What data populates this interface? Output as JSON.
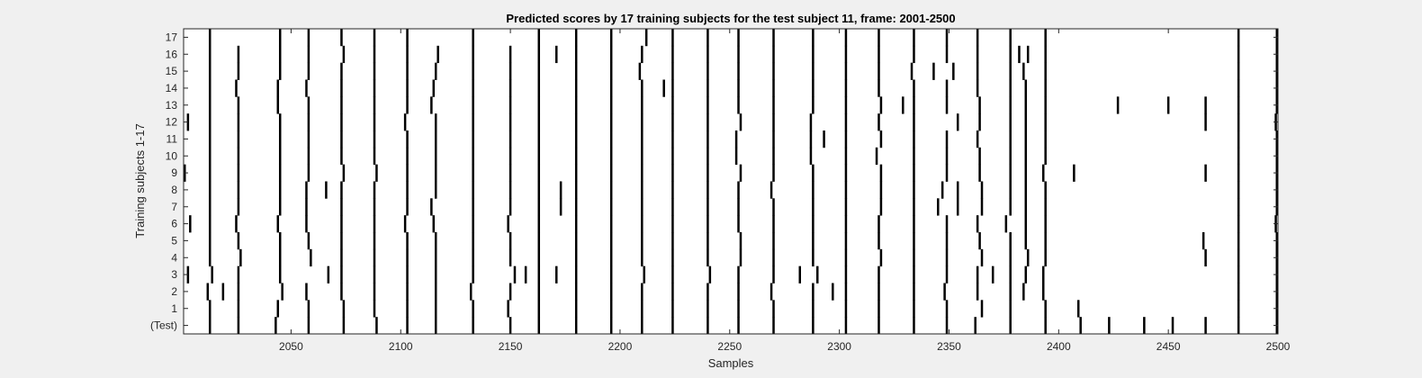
{
  "chart_data": {
    "type": "heatmap",
    "title": "Predicted scores by 17 training subjects for the test subject 11, frame: 2001-2500",
    "xlabel": "Samples",
    "ylabel": "Training subjects 1-17",
    "xlim": [
      2001,
      2500
    ],
    "x_ticks": [
      2050,
      2100,
      2150,
      2200,
      2250,
      2300,
      2350,
      2400,
      2450,
      2500
    ],
    "y_tick_labels": [
      "(Test)",
      "1",
      "2",
      "3",
      "4",
      "5",
      "6",
      "7",
      "8",
      "9",
      "10",
      "11",
      "12",
      "13",
      "14",
      "15",
      "16",
      "17"
    ],
    "grid": false,
    "colors": {
      "background": "#ffffff",
      "mark": "#000000",
      "figure": "#f0f0f0"
    },
    "rows": [
      {
        "label": "(Test)",
        "events": [
          2013,
          2026,
          2043,
          2058,
          2074,
          2089,
          2103,
          2116,
          2133,
          2150,
          2163,
          2180,
          2196,
          2210,
          2224,
          2240,
          2254,
          2270,
          2288,
          2303,
          2318,
          2334,
          2349,
          2362,
          2378,
          2394,
          2410,
          2423,
          2439,
          2452,
          2467,
          2482,
          2500
        ]
      },
      {
        "label": "1",
        "events": [
          2013,
          2026,
          2044,
          2058,
          2074,
          2088,
          2103,
          2116,
          2133,
          2149,
          2163,
          2180,
          2196,
          2210,
          2224,
          2240,
          2254,
          2270,
          2288,
          2303,
          2318,
          2334,
          2349,
          2365,
          2378,
          2394,
          2409,
          2482,
          2500
        ]
      },
      {
        "label": "2",
        "events": [
          2012,
          2019,
          2026,
          2046,
          2057,
          2073,
          2088,
          2103,
          2116,
          2132,
          2150,
          2163,
          2180,
          2196,
          2210,
          2224,
          2240,
          2254,
          2269,
          2288,
          2297,
          2303,
          2318,
          2334,
          2348,
          2363,
          2378,
          2384,
          2393,
          2482,
          2500
        ]
      },
      {
        "label": "3",
        "events": [
          2003,
          2014,
          2026,
          2045,
          2067,
          2073,
          2088,
          2103,
          2116,
          2133,
          2152,
          2157,
          2163,
          2171,
          2180,
          2196,
          2211,
          2224,
          2241,
          2254,
          2270,
          2282,
          2290,
          2303,
          2318,
          2334,
          2349,
          2363,
          2370,
          2378,
          2385,
          2393,
          2482,
          2500
        ]
      },
      {
        "label": "4",
        "events": [
          2013,
          2027,
          2045,
          2059,
          2073,
          2088,
          2103,
          2116,
          2133,
          2150,
          2163,
          2180,
          2196,
          2210,
          2224,
          2240,
          2255,
          2270,
          2288,
          2303,
          2319,
          2334,
          2349,
          2365,
          2378,
          2386,
          2394,
          2467,
          2482,
          2500
        ]
      },
      {
        "label": "5",
        "events": [
          2013,
          2026,
          2045,
          2058,
          2073,
          2088,
          2103,
          2116,
          2133,
          2150,
          2163,
          2180,
          2196,
          2210,
          2224,
          2240,
          2255,
          2270,
          2288,
          2303,
          2318,
          2334,
          2349,
          2364,
          2378,
          2385,
          2394,
          2466,
          2482,
          2500
        ]
      },
      {
        "label": "6",
        "events": [
          2004,
          2013,
          2025,
          2044,
          2057,
          2073,
          2088,
          2102,
          2115,
          2133,
          2149,
          2163,
          2180,
          2196,
          2210,
          2224,
          2240,
          2254,
          2270,
          2288,
          2303,
          2318,
          2334,
          2349,
          2363,
          2376,
          2385,
          2394,
          2482,
          2499
        ]
      },
      {
        "label": "7",
        "events": [
          2013,
          2026,
          2045,
          2057,
          2073,
          2088,
          2103,
          2114,
          2133,
          2150,
          2163,
          2173,
          2180,
          2196,
          2210,
          2224,
          2240,
          2254,
          2270,
          2288,
          2303,
          2319,
          2334,
          2345,
          2354,
          2365,
          2378,
          2385,
          2394,
          2482,
          2500
        ]
      },
      {
        "label": "8",
        "events": [
          2013,
          2026,
          2045,
          2057,
          2066,
          2073,
          2088,
          2103,
          2116,
          2133,
          2150,
          2163,
          2173,
          2180,
          2196,
          2210,
          2224,
          2240,
          2254,
          2269,
          2288,
          2303,
          2319,
          2334,
          2347,
          2354,
          2365,
          2378,
          2385,
          2394,
          2482,
          2500
        ]
      },
      {
        "label": "9",
        "events": [
          2001,
          2013,
          2026,
          2045,
          2058,
          2074,
          2089,
          2103,
          2116,
          2133,
          2150,
          2163,
          2180,
          2196,
          2210,
          2224,
          2240,
          2255,
          2270,
          2288,
          2303,
          2319,
          2334,
          2349,
          2364,
          2378,
          2385,
          2393,
          2407,
          2467,
          2482,
          2500
        ]
      },
      {
        "label": "10",
        "events": [
          2013,
          2026,
          2045,
          2058,
          2073,
          2088,
          2103,
          2116,
          2133,
          2150,
          2163,
          2180,
          2196,
          2210,
          2224,
          2240,
          2253,
          2270,
          2287,
          2303,
          2317,
          2334,
          2349,
          2364,
          2378,
          2385,
          2394,
          2482,
          2500
        ]
      },
      {
        "label": "11",
        "events": [
          2013,
          2026,
          2045,
          2058,
          2073,
          2088,
          2103,
          2116,
          2133,
          2150,
          2163,
          2180,
          2196,
          2210,
          2224,
          2240,
          2253,
          2270,
          2287,
          2293,
          2303,
          2319,
          2334,
          2349,
          2363,
          2378,
          2385,
          2394,
          2482,
          2500
        ]
      },
      {
        "label": "12",
        "events": [
          2003,
          2013,
          2026,
          2045,
          2058,
          2073,
          2088,
          2102,
          2116,
          2133,
          2150,
          2163,
          2180,
          2196,
          2210,
          2224,
          2240,
          2255,
          2270,
          2287,
          2303,
          2318,
          2334,
          2354,
          2364,
          2378,
          2385,
          2394,
          2467,
          2482,
          2499
        ]
      },
      {
        "label": "13",
        "events": [
          2013,
          2026,
          2044,
          2058,
          2073,
          2088,
          2103,
          2114,
          2133,
          2150,
          2163,
          2180,
          2196,
          2210,
          2224,
          2240,
          2254,
          2270,
          2288,
          2303,
          2319,
          2329,
          2334,
          2349,
          2364,
          2378,
          2385,
          2394,
          2427,
          2450,
          2467,
          2482,
          2500
        ]
      },
      {
        "label": "14",
        "events": [
          2013,
          2025,
          2044,
          2057,
          2073,
          2088,
          2103,
          2115,
          2133,
          2150,
          2163,
          2180,
          2196,
          2210,
          2220,
          2224,
          2240,
          2254,
          2270,
          2288,
          2303,
          2318,
          2334,
          2349,
          2363,
          2378,
          2385,
          2394,
          2482,
          2500
        ]
      },
      {
        "label": "15",
        "events": [
          2013,
          2026,
          2045,
          2058,
          2073,
          2088,
          2103,
          2116,
          2133,
          2150,
          2163,
          2180,
          2196,
          2209,
          2224,
          2240,
          2254,
          2270,
          2288,
          2303,
          2318,
          2333,
          2343,
          2352,
          2363,
          2378,
          2384,
          2394,
          2482,
          2500
        ]
      },
      {
        "label": "16",
        "events": [
          2013,
          2026,
          2045,
          2058,
          2074,
          2088,
          2103,
          2117,
          2133,
          2150,
          2163,
          2171,
          2180,
          2196,
          2210,
          2224,
          2240,
          2254,
          2270,
          2288,
          2303,
          2318,
          2334,
          2349,
          2363,
          2378,
          2382,
          2386,
          2394,
          2482,
          2500
        ]
      },
      {
        "label": "17",
        "events": [
          2013,
          2045,
          2058,
          2073,
          2088,
          2103,
          2133,
          2163,
          2180,
          2196,
          2212,
          2224,
          2240,
          2254,
          2270,
          2288,
          2303,
          2318,
          2334,
          2349,
          2363,
          2378,
          2394,
          2482,
          2500
        ]
      }
    ]
  }
}
